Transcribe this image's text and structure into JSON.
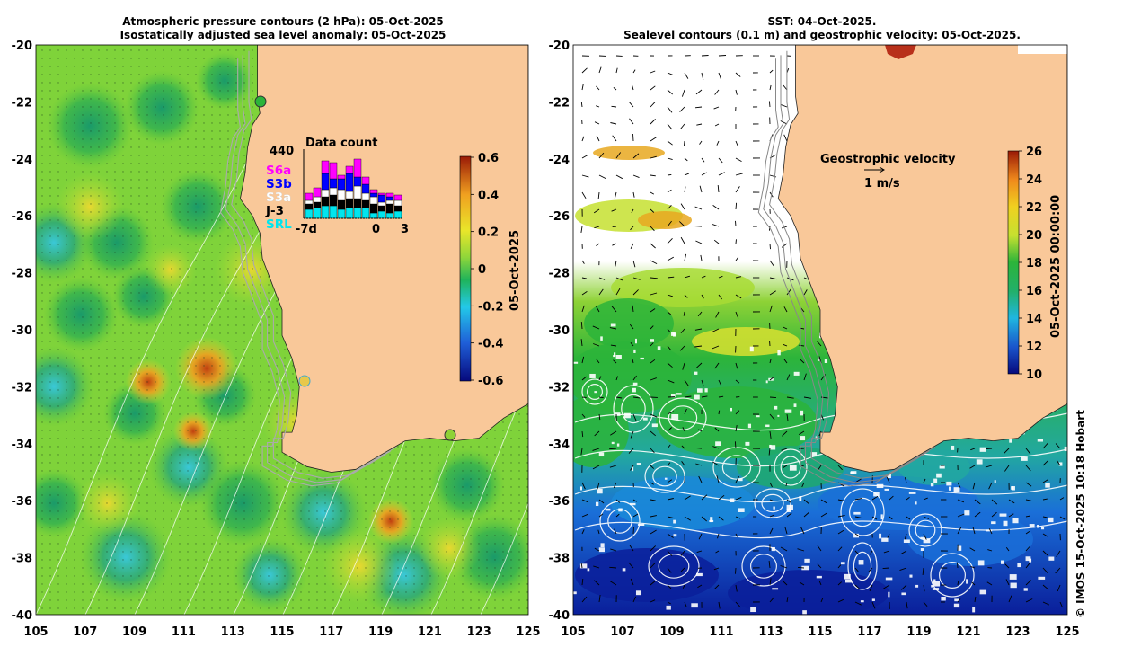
{
  "left_panel": {
    "title_line1": "Atmospheric pressure contours (2 hPa): 05-Oct-2025",
    "title_line2": "Isostatically adjusted sea level anomaly: 05-Oct-2025",
    "colorbar_label": "05-Oct-2025",
    "colorbar_ticks": [
      "0.6",
      "0.4",
      "0.2",
      "0",
      "-0.2",
      "-0.4",
      "-0.6"
    ],
    "colorbar_range": [
      -0.6,
      0.6
    ],
    "inset": {
      "count": "440",
      "title": "Data count",
      "satellites": [
        {
          "label": "S6a",
          "color": "#ff00ff"
        },
        {
          "label": "S3b",
          "color": "#0000ff"
        },
        {
          "label": "S3a",
          "color": "#ffffff"
        },
        {
          "label": "J-3",
          "color": "#000000"
        },
        {
          "label": "SRL",
          "color": "#00e5ee"
        }
      ],
      "axis_labels": [
        "-7d",
        "0",
        "3"
      ]
    }
  },
  "right_panel": {
    "title_line1": "SST: 04-Oct-2025.",
    "title_line2": "Sealevel contours (0.1 m) and geostrophic velocity: 05-Oct-2025.",
    "colorbar_label": "05-Oct-2025 00:00:00",
    "colorbar_ticks": [
      "26",
      "24",
      "22",
      "20",
      "18",
      "16",
      "14",
      "12",
      "10"
    ],
    "colorbar_range": [
      10,
      26
    ],
    "legend_title": "Geostrophic velocity",
    "legend_scale": "1 m/s"
  },
  "axes": {
    "x_ticks": [
      "105",
      "107",
      "109",
      "111",
      "113",
      "115",
      "117",
      "119",
      "121",
      "123",
      "125"
    ],
    "y_ticks": [
      "-20",
      "-22",
      "-24",
      "-26",
      "-28",
      "-30",
      "-32",
      "-34",
      "-36",
      "-38",
      "-40"
    ],
    "lon_range": [
      105,
      125
    ],
    "lat_range": [
      -40,
      -20
    ]
  },
  "colors": {
    "land": "#f9c899",
    "ocean_green": "#7fd33a",
    "sst_green": "#2cb43a",
    "sst_blue": "#1a6fd8",
    "sst_navy": "#0a1e9a"
  },
  "copyright": "© IMOS 15-Oct-2025 10:18 Hobart"
}
